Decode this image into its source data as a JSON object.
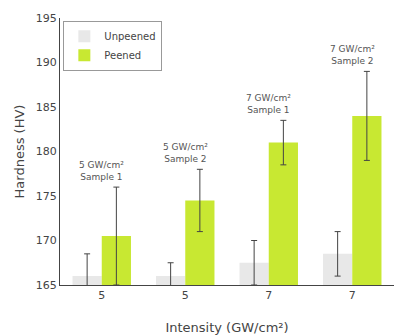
{
  "chart_data": {
    "type": "bar",
    "xlabel": "Intensity (GW/cm²)",
    "ylabel": "Hardness (HV)",
    "categories": [
      "5",
      "5",
      "7",
      "7"
    ],
    "series": [
      {
        "name": "Unpeened",
        "color": "#e8e8e8",
        "values": [
          166.0,
          166.0,
          167.5,
          168.5
        ],
        "errors": [
          2.5,
          1.5,
          2.5,
          2.5
        ]
      },
      {
        "name": "Peened",
        "color": "#c8e832",
        "values": [
          170.5,
          174.5,
          181.0,
          184.0
        ],
        "errors": [
          5.5,
          3.5,
          2.5,
          5.0
        ]
      }
    ],
    "annotations": [
      {
        "text": "5 GW/cm²\nSample 1",
        "x": 0
      },
      {
        "text": "5 GW/cm²\nSample 2",
        "x": 1
      },
      {
        "text": "7 GW/cm²\nSample 1",
        "x": 2
      },
      {
        "text": "7 GW/cm²\nSample 2",
        "x": 3
      }
    ],
    "ylim": [
      165,
      195
    ],
    "yticks": [
      165,
      170,
      175,
      180,
      185,
      190,
      195
    ],
    "grid": false,
    "legend": "upper left"
  }
}
